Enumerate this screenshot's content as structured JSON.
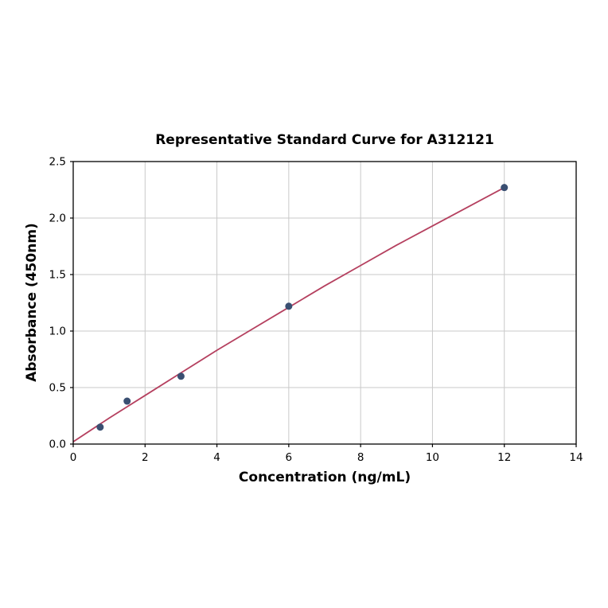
{
  "chart_data": {
    "type": "scatter",
    "title": "Representative Standard Curve for A312121",
    "xlabel": "Concentration (ng/mL)",
    "ylabel": "Absorbance (450nm)",
    "xlim": [
      0,
      14
    ],
    "ylim": [
      0.0,
      2.5
    ],
    "x_ticks": [
      0,
      2,
      4,
      6,
      8,
      10,
      12,
      14
    ],
    "x_tick_labels": [
      "0",
      "2",
      "4",
      "6",
      "8",
      "10",
      "12",
      "14"
    ],
    "y_ticks": [
      0.0,
      0.5,
      1.0,
      1.5,
      2.0,
      2.5
    ],
    "y_tick_labels": [
      "0.0",
      "0.5",
      "1.0",
      "1.5",
      "2.0",
      "2.5"
    ],
    "grid": true,
    "legend": "none",
    "points": {
      "x": [
        0.75,
        1.5,
        3.0,
        6.0,
        12.0
      ],
      "y": [
        0.15,
        0.38,
        0.6,
        1.22,
        2.27
      ]
    },
    "trendline": {
      "x": [
        0,
        1,
        2,
        3,
        4,
        5,
        6,
        7,
        8,
        9,
        10,
        11,
        12
      ],
      "y": [
        0.02,
        0.23,
        0.43,
        0.63,
        0.83,
        1.02,
        1.21,
        1.4,
        1.58,
        1.76,
        1.93,
        2.1,
        2.27
      ]
    },
    "colors": {
      "point": "#3a4f72",
      "line": "#b5405f",
      "grid": "#c9c9c9",
      "axis": "#000000",
      "background": "#ffffff"
    }
  }
}
